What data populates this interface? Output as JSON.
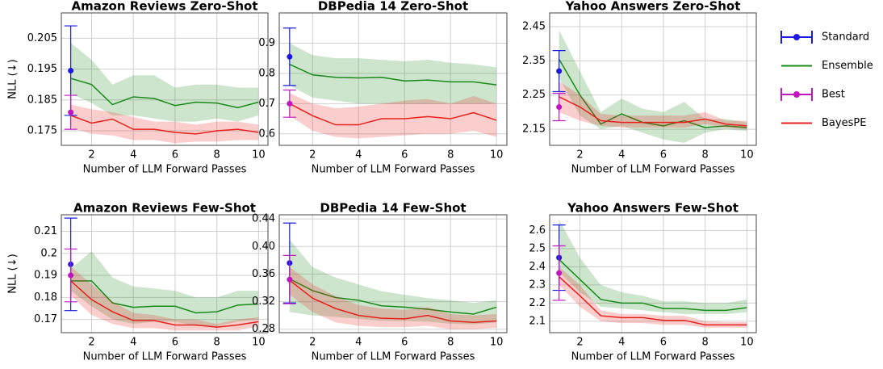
{
  "chart_data": [
    {
      "type": "line",
      "title": "Amazon Reviews Zero-Shot",
      "xlabel": "Number of LLM Forward Passes",
      "ylabel": "NLL (↓)",
      "grid": true,
      "x": [
        1,
        2,
        3,
        4,
        5,
        6,
        7,
        8,
        9,
        10
      ],
      "xlim": [
        0.55,
        10.45
      ],
      "xticks": [
        2,
        4,
        6,
        8,
        10
      ],
      "ylim": [
        0.1703,
        0.2132
      ],
      "yticks": [
        0.175,
        0.185,
        0.195,
        0.205
      ],
      "series": [
        {
          "color": "#1a8a1a",
          "values": [
            0.192,
            0.19,
            0.1835,
            0.186,
            0.1855,
            0.1832,
            0.1843,
            0.184,
            0.1825,
            0.1843
          ],
          "lower": [
            0.187,
            0.184,
            0.18,
            0.18,
            0.179,
            0.178,
            0.178,
            0.179,
            0.178,
            0.18
          ],
          "upper": [
            0.2035,
            0.198,
            0.19,
            0.193,
            0.193,
            0.189,
            0.19,
            0.19,
            0.189,
            0.189
          ]
        },
        {
          "color": "#e8201c",
          "values": [
            0.18,
            0.1775,
            0.1788,
            0.1755,
            0.1755,
            0.1745,
            0.174,
            0.175,
            0.1755,
            0.1745
          ],
          "lower": [
            0.176,
            0.174,
            0.1735,
            0.172,
            0.172,
            0.171,
            0.1715,
            0.1715,
            0.172,
            0.172
          ],
          "upper": [
            0.1835,
            0.182,
            0.181,
            0.1795,
            0.178,
            0.178,
            0.177,
            0.178,
            0.178,
            0.177
          ]
        }
      ],
      "points": [
        {
          "color": "#1a1adf",
          "x": 1,
          "value": 0.1945,
          "error": 0.0145
        },
        {
          "color": "#c015c0",
          "x": 1,
          "value": 0.181,
          "error": 0.0055
        }
      ]
    },
    {
      "type": "line",
      "title": "DBPedia 14 Zero-Shot",
      "xlabel": "Number of LLM Forward Passes",
      "grid": true,
      "x": [
        1,
        2,
        3,
        4,
        5,
        6,
        7,
        8,
        9,
        10
      ],
      "xlim": [
        0.55,
        10.45
      ],
      "xticks": [
        2,
        4,
        6,
        8,
        10
      ],
      "ylim": [
        0.562,
        1.0
      ],
      "yticks": [
        0.6,
        0.7,
        0.8,
        0.9
      ],
      "series": [
        {
          "color": "#1a8a1a",
          "values": [
            0.83,
            0.795,
            0.787,
            0.785,
            0.787,
            0.775,
            0.778,
            0.772,
            0.772,
            0.762
          ],
          "lower": [
            0.76,
            0.72,
            0.71,
            0.7,
            0.7,
            0.7,
            0.7,
            0.7,
            0.7,
            0.7
          ],
          "upper": [
            0.9,
            0.86,
            0.85,
            0.85,
            0.845,
            0.84,
            0.845,
            0.835,
            0.83,
            0.82
          ]
        },
        {
          "color": "#e8201c",
          "values": [
            0.7,
            0.66,
            0.63,
            0.63,
            0.65,
            0.65,
            0.657,
            0.65,
            0.67,
            0.645
          ],
          "lower": [
            0.66,
            0.61,
            0.59,
            0.585,
            0.59,
            0.595,
            0.6,
            0.6,
            0.61,
            0.59
          ],
          "upper": [
            0.735,
            0.7,
            0.685,
            0.69,
            0.7,
            0.71,
            0.715,
            0.7,
            0.725,
            0.7
          ]
        }
      ],
      "points": [
        {
          "color": "#1a1adf",
          "x": 1,
          "value": 0.855,
          "error": 0.095
        },
        {
          "color": "#c015c0",
          "x": 1,
          "value": 0.7,
          "error": 0.045
        }
      ]
    },
    {
      "type": "line",
      "title": "Yahoo Answers Zero-Shot",
      "xlabel": "Number of LLM Forward Passes",
      "grid": true,
      "x": [
        1,
        2,
        3,
        4,
        5,
        6,
        7,
        8,
        9,
        10
      ],
      "xlim": [
        0.55,
        10.45
      ],
      "xticks": [
        2,
        4,
        6,
        8,
        10
      ],
      "ylim": [
        2.103,
        2.49
      ],
      "yticks": [
        2.15,
        2.25,
        2.35,
        2.45
      ],
      "series": [
        {
          "color": "#1a8a1a",
          "values": [
            2.355,
            2.25,
            2.165,
            2.195,
            2.17,
            2.16,
            2.175,
            2.155,
            2.16,
            2.155
          ],
          "lower": [
            2.3,
            2.19,
            2.15,
            2.16,
            2.14,
            2.12,
            2.11,
            2.14,
            2.15,
            2.145
          ],
          "upper": [
            2.44,
            2.32,
            2.2,
            2.24,
            2.21,
            2.2,
            2.23,
            2.18,
            2.18,
            2.17
          ]
        },
        {
          "color": "#e8201c",
          "values": [
            2.245,
            2.215,
            2.175,
            2.17,
            2.17,
            2.17,
            2.17,
            2.18,
            2.165,
            2.16
          ],
          "lower": [
            2.2,
            2.175,
            2.16,
            2.155,
            2.155,
            2.155,
            2.155,
            2.165,
            2.155,
            2.15
          ],
          "upper": [
            2.29,
            2.25,
            2.195,
            2.19,
            2.19,
            2.19,
            2.19,
            2.2,
            2.175,
            2.175
          ]
        }
      ],
      "points": [
        {
          "color": "#1a1adf",
          "x": 1,
          "value": 2.32,
          "error": 0.06
        },
        {
          "color": "#c015c0",
          "x": 1,
          "value": 2.215,
          "error": 0.04
        }
      ]
    },
    {
      "type": "line",
      "title": "Amazon Reviews Few-Shot",
      "xlabel": "Number of LLM Forward Passes",
      "ylabel": "NLL (↓)",
      "grid": true,
      "x": [
        1,
        2,
        3,
        4,
        5,
        6,
        7,
        8,
        9,
        10
      ],
      "xlim": [
        0.55,
        10.45
      ],
      "xticks": [
        2,
        4,
        6,
        8,
        10
      ],
      "ylim": [
        0.164,
        0.2175
      ],
      "yticks": [
        0.17,
        0.18,
        0.19,
        0.2,
        0.21
      ],
      "series": [
        {
          "color": "#1a8a1a",
          "values": [
            0.1875,
            0.1875,
            0.1775,
            0.1755,
            0.176,
            0.176,
            0.173,
            0.1735,
            0.1765,
            0.177
          ],
          "lower": [
            0.183,
            0.176,
            0.17,
            0.168,
            0.169,
            0.169,
            0.167,
            0.167,
            0.169,
            0.17
          ],
          "upper": [
            0.193,
            0.201,
            0.189,
            0.185,
            0.184,
            0.183,
            0.18,
            0.18,
            0.183,
            0.183
          ]
        },
        {
          "color": "#e8201c",
          "values": [
            0.1875,
            0.179,
            0.1735,
            0.1695,
            0.1695,
            0.1675,
            0.1675,
            0.1665,
            0.1675,
            0.169
          ],
          "lower": [
            0.181,
            0.172,
            0.168,
            0.166,
            0.166,
            0.165,
            0.165,
            0.165,
            0.165,
            0.167
          ],
          "upper": [
            0.194,
            0.186,
            0.178,
            0.173,
            0.172,
            0.17,
            0.17,
            0.168,
            0.17,
            0.171
          ]
        }
      ],
      "points": [
        {
          "color": "#1a1adf",
          "x": 1,
          "value": 0.195,
          "error": 0.021
        },
        {
          "color": "#c015c0",
          "x": 1,
          "value": 0.19,
          "error": 0.012
        }
      ]
    },
    {
      "type": "line",
      "title": "DBPedia 14 Few-Shot",
      "xlabel": "Number of LLM Forward Passes",
      "grid": true,
      "x": [
        1,
        2,
        3,
        4,
        5,
        6,
        7,
        8,
        9,
        10
      ],
      "xlim": [
        0.55,
        10.45
      ],
      "xticks": [
        2,
        4,
        6,
        8,
        10
      ],
      "ylim": [
        0.275,
        0.446
      ],
      "yticks": [
        0.28,
        0.32,
        0.36,
        {
          "value": 0.4,
          "label": "0.40"
        },
        0.44
      ],
      "series": [
        {
          "color": "#1a8a1a",
          "values": [
            0.353,
            0.336,
            0.326,
            0.322,
            0.314,
            0.312,
            0.309,
            0.305,
            0.302,
            0.312
          ],
          "lower": [
            0.305,
            0.3,
            0.298,
            0.295,
            0.292,
            0.292,
            0.291,
            0.288,
            0.287,
            0.29
          ],
          "upper": [
            0.41,
            0.37,
            0.355,
            0.345,
            0.335,
            0.33,
            0.325,
            0.322,
            0.318,
            0.322
          ]
        },
        {
          "color": "#e8201c",
          "values": [
            0.351,
            0.325,
            0.31,
            0.3,
            0.296,
            0.295,
            0.3,
            0.292,
            0.29,
            0.292
          ],
          "lower": [
            0.33,
            0.305,
            0.29,
            0.285,
            0.283,
            0.283,
            0.285,
            0.28,
            0.28,
            0.282
          ],
          "upper": [
            0.37,
            0.345,
            0.328,
            0.315,
            0.31,
            0.308,
            0.312,
            0.302,
            0.3,
            0.302
          ]
        }
      ],
      "points": [
        {
          "color": "#1a1adf",
          "x": 1,
          "value": 0.376,
          "error": 0.058
        },
        {
          "color": "#c015c0",
          "x": 1,
          "value": 0.352,
          "error": 0.035
        }
      ]
    },
    {
      "type": "line",
      "title": "Yahoo Answers Few-Shot",
      "xlabel": "Number of LLM Forward Passes",
      "grid": true,
      "x": [
        1,
        2,
        3,
        4,
        5,
        6,
        7,
        8,
        9,
        10
      ],
      "xlim": [
        0.55,
        10.45
      ],
      "xticks": [
        2,
        4,
        6,
        8,
        10
      ],
      "ylim": [
        2.037,
        2.686
      ],
      "yticks": [
        2.1,
        2.2,
        2.3,
        2.4,
        2.5,
        2.6
      ],
      "series": [
        {
          "color": "#1a8a1a",
          "values": [
            2.44,
            2.33,
            2.22,
            2.2,
            2.2,
            2.17,
            2.17,
            2.16,
            2.16,
            2.175
          ],
          "lower": [
            2.37,
            2.26,
            2.18,
            2.17,
            2.16,
            2.15,
            2.14,
            2.14,
            2.14,
            2.15
          ],
          "upper": [
            2.66,
            2.45,
            2.3,
            2.26,
            2.24,
            2.21,
            2.21,
            2.2,
            2.2,
            2.22
          ]
        },
        {
          "color": "#e8201c",
          "values": [
            2.345,
            2.24,
            2.13,
            2.12,
            2.12,
            2.105,
            2.105,
            2.08,
            2.08,
            2.08
          ],
          "lower": [
            2.3,
            2.18,
            2.1,
            2.09,
            2.09,
            2.08,
            2.08,
            2.065,
            2.065,
            2.065
          ],
          "upper": [
            2.4,
            2.3,
            2.16,
            2.14,
            2.14,
            2.13,
            2.13,
            2.1,
            2.095,
            2.095
          ]
        }
      ],
      "points": [
        {
          "color": "#1a1adf",
          "x": 1,
          "value": 2.45,
          "error": 0.18
        },
        {
          "color": "#c015c0",
          "x": 1,
          "value": 2.365,
          "error": 0.15
        }
      ]
    }
  ],
  "legend": {
    "entries": [
      {
        "name": "Standard",
        "color": "#1a1adf",
        "kind": "errorbar"
      },
      {
        "name": "Ensemble",
        "color": "#1a8a1a",
        "kind": "line"
      },
      {
        "name": "Best",
        "color": "#c015c0",
        "kind": "errorbar"
      },
      {
        "name": "BayesPE",
        "color": "#e8201c",
        "kind": "line"
      }
    ]
  }
}
